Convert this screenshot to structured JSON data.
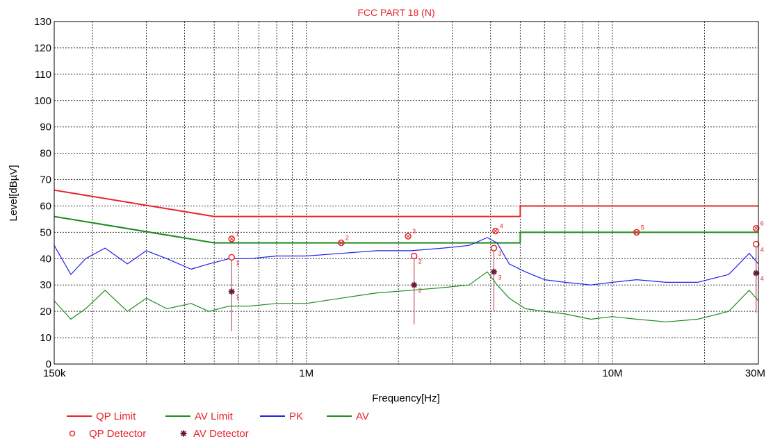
{
  "chart_data": {
    "type": "line",
    "title": "FCC PART 18 (N)",
    "xlabel": "Frequency[Hz]",
    "ylabel": "Level[dBµV]",
    "x_scale": "log",
    "xlim": [
      150000,
      30000000
    ],
    "ylim": [
      0,
      130
    ],
    "grid": true,
    "y_ticks": [
      0,
      10,
      20,
      30,
      40,
      50,
      60,
      70,
      80,
      90,
      100,
      110,
      120,
      130
    ],
    "x_tick_labels": [
      {
        "value": 150000,
        "label": "150k"
      },
      {
        "value": 1000000,
        "label": "1M"
      },
      {
        "value": 10000000,
        "label": "10M"
      },
      {
        "value": 30000000,
        "label": "30M"
      }
    ],
    "series": [
      {
        "name": "QP Limit",
        "color": "#e8232a",
        "x": [
          150000,
          500000,
          500000,
          5000000,
          5000000,
          30000000
        ],
        "y": [
          66,
          56,
          56,
          56,
          60,
          60
        ]
      },
      {
        "name": "AV Limit",
        "color": "#1f8a1f",
        "x": [
          150000,
          500000,
          500000,
          5000000,
          5000000,
          30000000
        ],
        "y": [
          56,
          46,
          46,
          46,
          50,
          50
        ]
      },
      {
        "name": "PK",
        "color": "#2020e8",
        "x": [
          150000,
          170000,
          190000,
          220000,
          260000,
          300000,
          350000,
          420000,
          480000,
          560000,
          650000,
          800000,
          1000000,
          1300000,
          1700000,
          2200000,
          2800000,
          3400000,
          3900000,
          4200000,
          4600000,
          5200000,
          6000000,
          7000000,
          8500000,
          10000000,
          12000000,
          15000000,
          19000000,
          24000000,
          28000000,
          30000000
        ],
        "y": [
          45,
          34,
          40,
          44,
          38,
          43,
          40,
          36,
          38,
          40,
          40,
          41,
          41,
          42,
          43,
          43,
          44,
          45,
          48,
          46,
          38,
          35,
          32,
          31,
          30,
          31,
          32,
          31,
          31,
          34,
          42,
          38
        ]
      },
      {
        "name": "AV",
        "color": "#1f8a1f",
        "x": [
          150000,
          170000,
          190000,
          220000,
          260000,
          300000,
          350000,
          420000,
          480000,
          560000,
          650000,
          800000,
          1000000,
          1300000,
          1700000,
          2200000,
          2800000,
          3400000,
          3900000,
          4200000,
          4600000,
          5200000,
          6000000,
          7000000,
          8500000,
          10000000,
          12000000,
          15000000,
          19000000,
          24000000,
          28000000,
          30000000
        ],
        "y": [
          24,
          17,
          21,
          28,
          20,
          25,
          21,
          23,
          20,
          22,
          22,
          23,
          23,
          25,
          27,
          28,
          29,
          30,
          35,
          30,
          25,
          21,
          20,
          19,
          17,
          18,
          17,
          16,
          17,
          20,
          28,
          24
        ]
      }
    ],
    "qp_detector": {
      "name": "QP Detector",
      "points": [
        {
          "label": "1",
          "x": 570000,
          "y": 40.5
        },
        {
          "label": "2",
          "x": 2250000,
          "y": 41
        },
        {
          "label": "3",
          "x": 4100000,
          "y": 44
        },
        {
          "label": "4",
          "x": 29500000,
          "y": 45.5
        }
      ]
    },
    "av_detector": {
      "name": "AV Detector",
      "points": [
        {
          "label": "1",
          "x": 570000,
          "y": 27.5
        },
        {
          "label": "2",
          "x": 2250000,
          "y": 30
        },
        {
          "label": "3",
          "x": 4100000,
          "y": 35
        },
        {
          "label": "4",
          "x": 29500000,
          "y": 34.5
        }
      ]
    },
    "peak_markers": [
      {
        "label": "1",
        "x": 570000,
        "y": 47.5
      },
      {
        "label": "2",
        "x": 1300000,
        "y": 46
      },
      {
        "label": "3",
        "x": 2150000,
        "y": 48.5
      },
      {
        "label": "4",
        "x": 4150000,
        "y": 50.5
      },
      {
        "label": "5",
        "x": 12000000,
        "y": 50
      },
      {
        "label": "6",
        "x": 29500000,
        "y": 51.5
      }
    ],
    "legend": {
      "placement": "bottom-left",
      "entries": [
        {
          "label": "QP Limit",
          "color": "#e8232a",
          "kind": "line"
        },
        {
          "label": "AV Limit",
          "color": "#1f8a1f",
          "kind": "line"
        },
        {
          "label": "PK",
          "color": "#2020e8",
          "kind": "line"
        },
        {
          "label": "AV",
          "color": "#1f8a1f",
          "kind": "line"
        },
        {
          "label": "QP Detector",
          "color": "#e8232a",
          "kind": "circle"
        },
        {
          "label": "AV Detector",
          "color": "#6b1a3c",
          "kind": "star"
        }
      ]
    }
  }
}
